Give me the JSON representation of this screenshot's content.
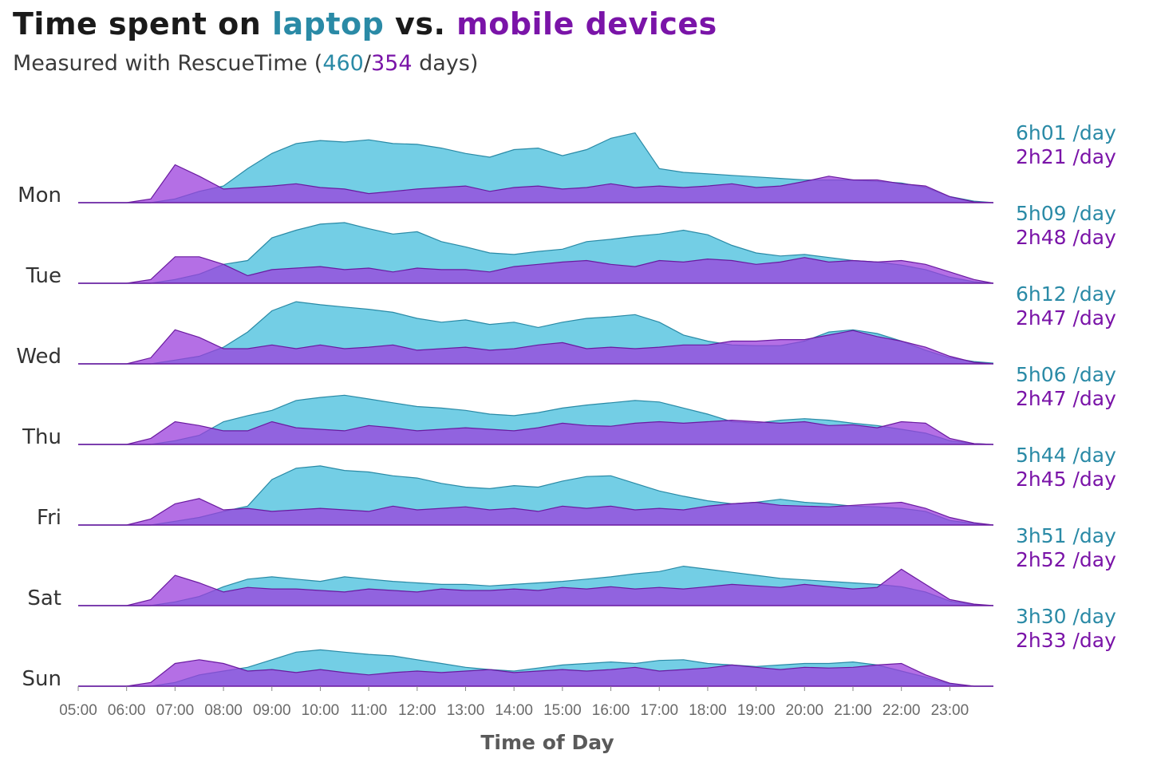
{
  "header": {
    "title_part1": "Time spent on ",
    "title_laptop": "laptop",
    "title_part2": " vs. ",
    "title_mobile": "mobile devices",
    "subtitle_prefix": "Measured with RescueTime (",
    "subtitle_laptop_days": "460",
    "subtitle_sep": "/",
    "subtitle_mobile_days": "354",
    "subtitle_suffix": " days)"
  },
  "colors": {
    "laptop_fill": "#5bc6e0",
    "laptop_line": "#2a8aa6",
    "mobile_fill": "#9b3fdc",
    "mobile_line": "#6a1aa0",
    "laptop_text": "#2a8aa6",
    "mobile_text": "#7a14a8",
    "tick_text": "#6a6a6a"
  },
  "chart_data": {
    "type": "area",
    "xlabel": "Time of Day",
    "x_ticks": [
      "05:00",
      "06:00",
      "07:00",
      "08:00",
      "09:00",
      "10:00",
      "11:00",
      "12:00",
      "13:00",
      "14:00",
      "15:00",
      "16:00",
      "17:00",
      "18:00",
      "19:00",
      "20:00",
      "21:00",
      "22:00",
      "23:00"
    ],
    "xlim": [
      5,
      23.9
    ],
    "x_hours": [
      5,
      5.5,
      6,
      6.5,
      7,
      7.5,
      8,
      8.5,
      9,
      9.5,
      10,
      10.5,
      11,
      11.5,
      12,
      12.5,
      13,
      13.5,
      14,
      14.5,
      15,
      15.5,
      16,
      16.5,
      17,
      17.5,
      18,
      18.5,
      19,
      19.5,
      20,
      20.5,
      21,
      21.5,
      22,
      22.5,
      23,
      23.5,
      23.9
    ],
    "series_names": [
      "laptop",
      "mobile devices"
    ],
    "days": [
      {
        "day": "Mon",
        "laptop_rate": "6h01 /day",
        "mobile_rate": "2h21 /day",
        "laptop": [
          0,
          0,
          0,
          0,
          5,
          15,
          22,
          45,
          65,
          78,
          82,
          80,
          83,
          78,
          77,
          72,
          65,
          60,
          70,
          72,
          62,
          70,
          85,
          92,
          45,
          40,
          38,
          36,
          34,
          32,
          30,
          30,
          30,
          28,
          26,
          20,
          8,
          2,
          0
        ],
        "mobile": [
          0,
          0,
          0,
          5,
          50,
          35,
          18,
          20,
          22,
          25,
          20,
          18,
          12,
          15,
          18,
          20,
          22,
          15,
          20,
          22,
          18,
          20,
          25,
          20,
          22,
          20,
          22,
          25,
          20,
          22,
          28,
          35,
          30,
          30,
          25,
          22,
          8,
          1,
          0
        ]
      },
      {
        "day": "Tue",
        "laptop_rate": "5h09 /day",
        "mobile_rate": "2h48 /day",
        "laptop": [
          0,
          0,
          0,
          0,
          5,
          12,
          25,
          30,
          60,
          70,
          78,
          80,
          72,
          65,
          68,
          55,
          48,
          40,
          38,
          42,
          45,
          55,
          58,
          62,
          65,
          70,
          64,
          50,
          40,
          36,
          38,
          34,
          30,
          28,
          24,
          18,
          8,
          2,
          0
        ],
        "mobile": [
          0,
          0,
          0,
          5,
          35,
          35,
          25,
          10,
          18,
          20,
          22,
          18,
          20,
          15,
          20,
          18,
          18,
          15,
          22,
          25,
          28,
          30,
          25,
          22,
          30,
          28,
          32,
          30,
          25,
          28,
          34,
          28,
          30,
          28,
          30,
          25,
          15,
          5,
          0
        ]
      },
      {
        "day": "Wed",
        "laptop_rate": "6h12 /day",
        "mobile_rate": "2h47 /day",
        "laptop": [
          0,
          0,
          0,
          0,
          5,
          10,
          22,
          42,
          70,
          82,
          78,
          75,
          72,
          68,
          60,
          55,
          58,
          52,
          55,
          48,
          55,
          60,
          62,
          65,
          55,
          38,
          30,
          25,
          24,
          24,
          30,
          42,
          45,
          40,
          30,
          18,
          8,
          3,
          1
        ],
        "mobile": [
          0,
          0,
          0,
          8,
          45,
          35,
          20,
          20,
          25,
          20,
          25,
          20,
          22,
          25,
          18,
          20,
          22,
          18,
          20,
          25,
          28,
          20,
          22,
          20,
          22,
          25,
          25,
          30,
          30,
          32,
          32,
          38,
          44,
          36,
          30,
          22,
          10,
          2,
          0
        ]
      },
      {
        "day": "Thu",
        "laptop_rate": "5h06 /day",
        "mobile_rate": "2h47 /day",
        "laptop": [
          0,
          0,
          0,
          0,
          5,
          12,
          30,
          38,
          45,
          58,
          62,
          65,
          60,
          55,
          50,
          48,
          45,
          40,
          38,
          42,
          48,
          52,
          55,
          58,
          56,
          48,
          40,
          30,
          28,
          32,
          34,
          32,
          28,
          25,
          20,
          15,
          5,
          1,
          0
        ],
        "mobile": [
          0,
          0,
          0,
          8,
          30,
          25,
          18,
          18,
          30,
          22,
          20,
          18,
          25,
          22,
          18,
          20,
          22,
          20,
          18,
          22,
          28,
          25,
          24,
          28,
          30,
          28,
          30,
          32,
          30,
          28,
          30,
          25,
          26,
          22,
          30,
          28,
          8,
          1,
          0
        ]
      },
      {
        "day": "Fri",
        "laptop_rate": "5h44 /day",
        "mobile_rate": "2h45 /day",
        "laptop": [
          0,
          0,
          0,
          0,
          5,
          10,
          18,
          25,
          60,
          75,
          78,
          72,
          70,
          65,
          62,
          55,
          50,
          48,
          52,
          50,
          58,
          64,
          65,
          55,
          45,
          38,
          32,
          28,
          30,
          34,
          30,
          28,
          25,
          24,
          22,
          18,
          6,
          2,
          0
        ],
        "mobile": [
          0,
          0,
          0,
          8,
          28,
          35,
          20,
          22,
          18,
          20,
          22,
          20,
          18,
          25,
          20,
          22,
          24,
          20,
          22,
          18,
          25,
          22,
          25,
          20,
          22,
          20,
          25,
          28,
          30,
          26,
          25,
          24,
          26,
          28,
          30,
          22,
          10,
          3,
          0
        ]
      },
      {
        "day": "Sat",
        "laptop_rate": "3h51 /day",
        "mobile_rate": "2h52 /day",
        "laptop": [
          0,
          0,
          0,
          0,
          5,
          12,
          25,
          35,
          38,
          35,
          32,
          38,
          35,
          32,
          30,
          28,
          28,
          26,
          28,
          30,
          32,
          35,
          38,
          42,
          45,
          52,
          48,
          44,
          40,
          36,
          34,
          32,
          30,
          28,
          25,
          18,
          6,
          1,
          0
        ],
        "mobile": [
          0,
          0,
          0,
          8,
          40,
          30,
          18,
          24,
          22,
          22,
          20,
          18,
          22,
          20,
          18,
          22,
          20,
          20,
          22,
          20,
          24,
          22,
          25,
          22,
          24,
          22,
          25,
          28,
          26,
          24,
          28,
          25,
          22,
          24,
          48,
          28,
          8,
          2,
          0
        ]
      },
      {
        "day": "Sun",
        "laptop_rate": "3h30 /day",
        "mobile_rate": "2h33 /day",
        "laptop": [
          0,
          0,
          0,
          0,
          5,
          15,
          20,
          25,
          35,
          45,
          48,
          45,
          42,
          40,
          35,
          30,
          25,
          22,
          20,
          24,
          28,
          30,
          32,
          30,
          34,
          35,
          30,
          28,
          26,
          28,
          30,
          30,
          32,
          28,
          20,
          12,
          3,
          0,
          0
        ],
        "mobile": [
          0,
          0,
          0,
          5,
          30,
          35,
          30,
          20,
          22,
          18,
          22,
          18,
          15,
          18,
          20,
          18,
          20,
          22,
          18,
          20,
          22,
          20,
          22,
          25,
          20,
          22,
          24,
          28,
          25,
          22,
          25,
          24,
          25,
          28,
          30,
          15,
          4,
          0,
          0
        ]
      }
    ]
  },
  "axis": {
    "title": "Time of Day"
  }
}
